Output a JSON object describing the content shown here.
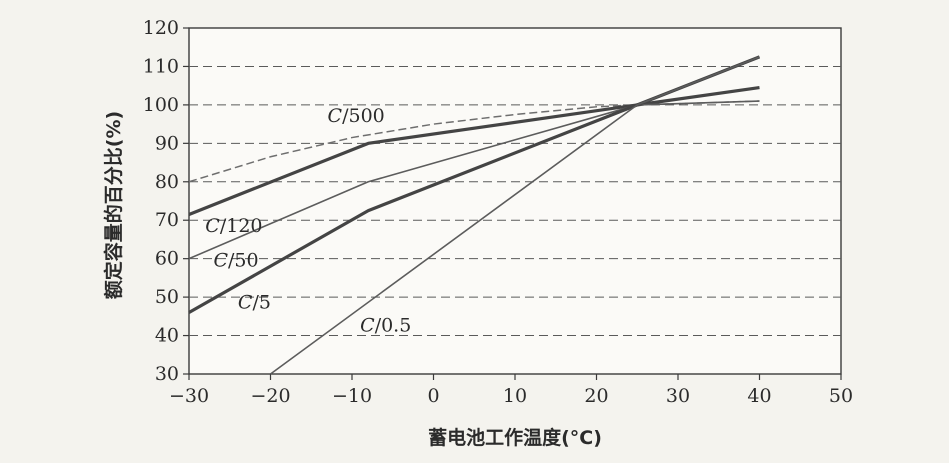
{
  "chart_data": {
    "type": "line",
    "title": "",
    "xlabel": "蓄电池工作温度(°C)",
    "ylabel": "额定容量的百分比(%)",
    "xlim": [
      -30,
      50
    ],
    "ylim": [
      30,
      120
    ],
    "xticks": [
      "−30",
      "−20",
      "−10",
      "0",
      "10",
      "20",
      "30",
      "40",
      "50"
    ],
    "yticks": [
      "30",
      "40",
      "50",
      "60",
      "70",
      "80",
      "90",
      "100",
      "110",
      "120"
    ],
    "grid": "horizontal dashed",
    "series": [
      {
        "name": "C/500",
        "style": "dashed",
        "x": [
          -30,
          -20,
          -10,
          0,
          10,
          20,
          25,
          30,
          40
        ],
        "y": [
          80,
          86.5,
          91.5,
          95,
          97.5,
          99.5,
          100,
          100.3,
          101
        ]
      },
      {
        "name": "C/120",
        "style": "thick",
        "x": [
          -30,
          -8,
          25,
          40
        ],
        "y": [
          71.5,
          90,
          100,
          104.5
        ]
      },
      {
        "name": "C/50",
        "style": "thin",
        "x": [
          -30,
          -8,
          25,
          40
        ],
        "y": [
          60,
          80,
          100,
          101
        ]
      },
      {
        "name": "C/5",
        "style": "thick",
        "x": [
          -30,
          -8,
          25,
          40
        ],
        "y": [
          46,
          72.5,
          100,
          112.5
        ]
      },
      {
        "name": "C/0.5",
        "style": "thin",
        "x": [
          -20,
          25,
          40
        ],
        "y": [
          30,
          100,
          112.5
        ]
      }
    ]
  }
}
